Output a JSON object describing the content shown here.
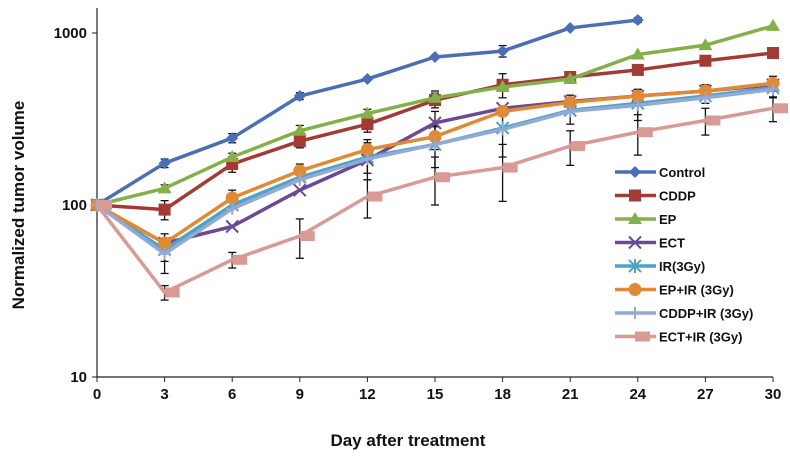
{
  "chart_data": {
    "type": "line",
    "title": "",
    "xlabel": "Day after treatment",
    "ylabel": "Normalized tumor volume",
    "xlim": [
      0,
      30
    ],
    "ylim": [
      10,
      2000
    ],
    "yscale": "log",
    "grid": false,
    "legend_position": "right",
    "x_ticks": [
      "0",
      "3",
      "6",
      "9",
      "12",
      "15",
      "18",
      "21",
      "24",
      "27",
      "30"
    ],
    "y_ticks": [
      "10",
      "100",
      "1000"
    ],
    "x": [
      0,
      3,
      6,
      9,
      12,
      15,
      18,
      21,
      24,
      27,
      30
    ],
    "series": [
      {
        "name": "Control",
        "color": "#4a6fb5",
        "marker": "diamond",
        "values": [
          100,
          175,
          245,
          430,
          540,
          725,
          785,
          1070,
          1190,
          null,
          null
        ],
        "errors": [
          0,
          10,
          15,
          20,
          0,
          0,
          60,
          0,
          40,
          null,
          null
        ]
      },
      {
        "name": "CDDP",
        "color": "#a23b36",
        "marker": "square",
        "values": [
          100,
          94,
          173,
          235,
          295,
          407,
          500,
          555,
          610,
          690,
          765
        ],
        "errors": [
          0,
          12,
          18,
          20,
          30,
          40,
          80,
          0,
          0,
          0,
          0
        ]
      },
      {
        "name": "EP",
        "color": "#84b04a",
        "marker": "triangle",
        "values": [
          100,
          125,
          190,
          270,
          340,
          420,
          485,
          540,
          750,
          850,
          1100
        ],
        "errors": [
          0,
          6,
          10,
          20,
          20,
          40,
          0,
          0,
          0,
          0,
          0
        ]
      },
      {
        "name": "ECT",
        "color": "#6a4a94",
        "marker": "x",
        "values": [
          100,
          60,
          75,
          122,
          183,
          300,
          365,
          400,
          430,
          460,
          500
        ],
        "errors": [
          0,
          0,
          0,
          0,
          30,
          50,
          0,
          0,
          0,
          0,
          0
        ]
      },
      {
        "name": "IR(3Gy)",
        "color": "#4fa3c2",
        "marker": "asterisk",
        "values": [
          100,
          55,
          100,
          145,
          190,
          225,
          280,
          355,
          390,
          430,
          480
        ],
        "errors": [
          0,
          8,
          0,
          0,
          50,
          60,
          90,
          60,
          80,
          40,
          60
        ]
      },
      {
        "name": "EP+IR (3Gy)",
        "color": "#e08a35",
        "marker": "circle",
        "values": [
          100,
          60,
          110,
          158,
          210,
          250,
          350,
          395,
          430,
          460,
          510
        ],
        "errors": [
          0,
          8,
          12,
          15,
          20,
          40,
          0,
          40,
          40,
          40,
          50
        ]
      },
      {
        "name": "CDDP+IR (3Gy)",
        "color": "#93a9d6",
        "marker": "plus",
        "values": [
          100,
          52,
          95,
          140,
          185,
          225,
          275,
          350,
          380,
          420,
          470
        ],
        "errors": [
          0,
          12,
          0,
          0,
          0,
          0,
          0,
          0,
          0,
          0,
          0
        ]
      },
      {
        "name": "ECT+IR (3Gy)",
        "color": "#d89a95",
        "marker": "flag",
        "values": [
          100,
          31,
          48,
          66,
          112,
          145,
          165,
          220,
          265,
          310,
          365
        ],
        "errors": [
          0,
          3,
          5,
          17,
          28,
          45,
          60,
          50,
          70,
          55,
          60
        ]
      }
    ]
  }
}
